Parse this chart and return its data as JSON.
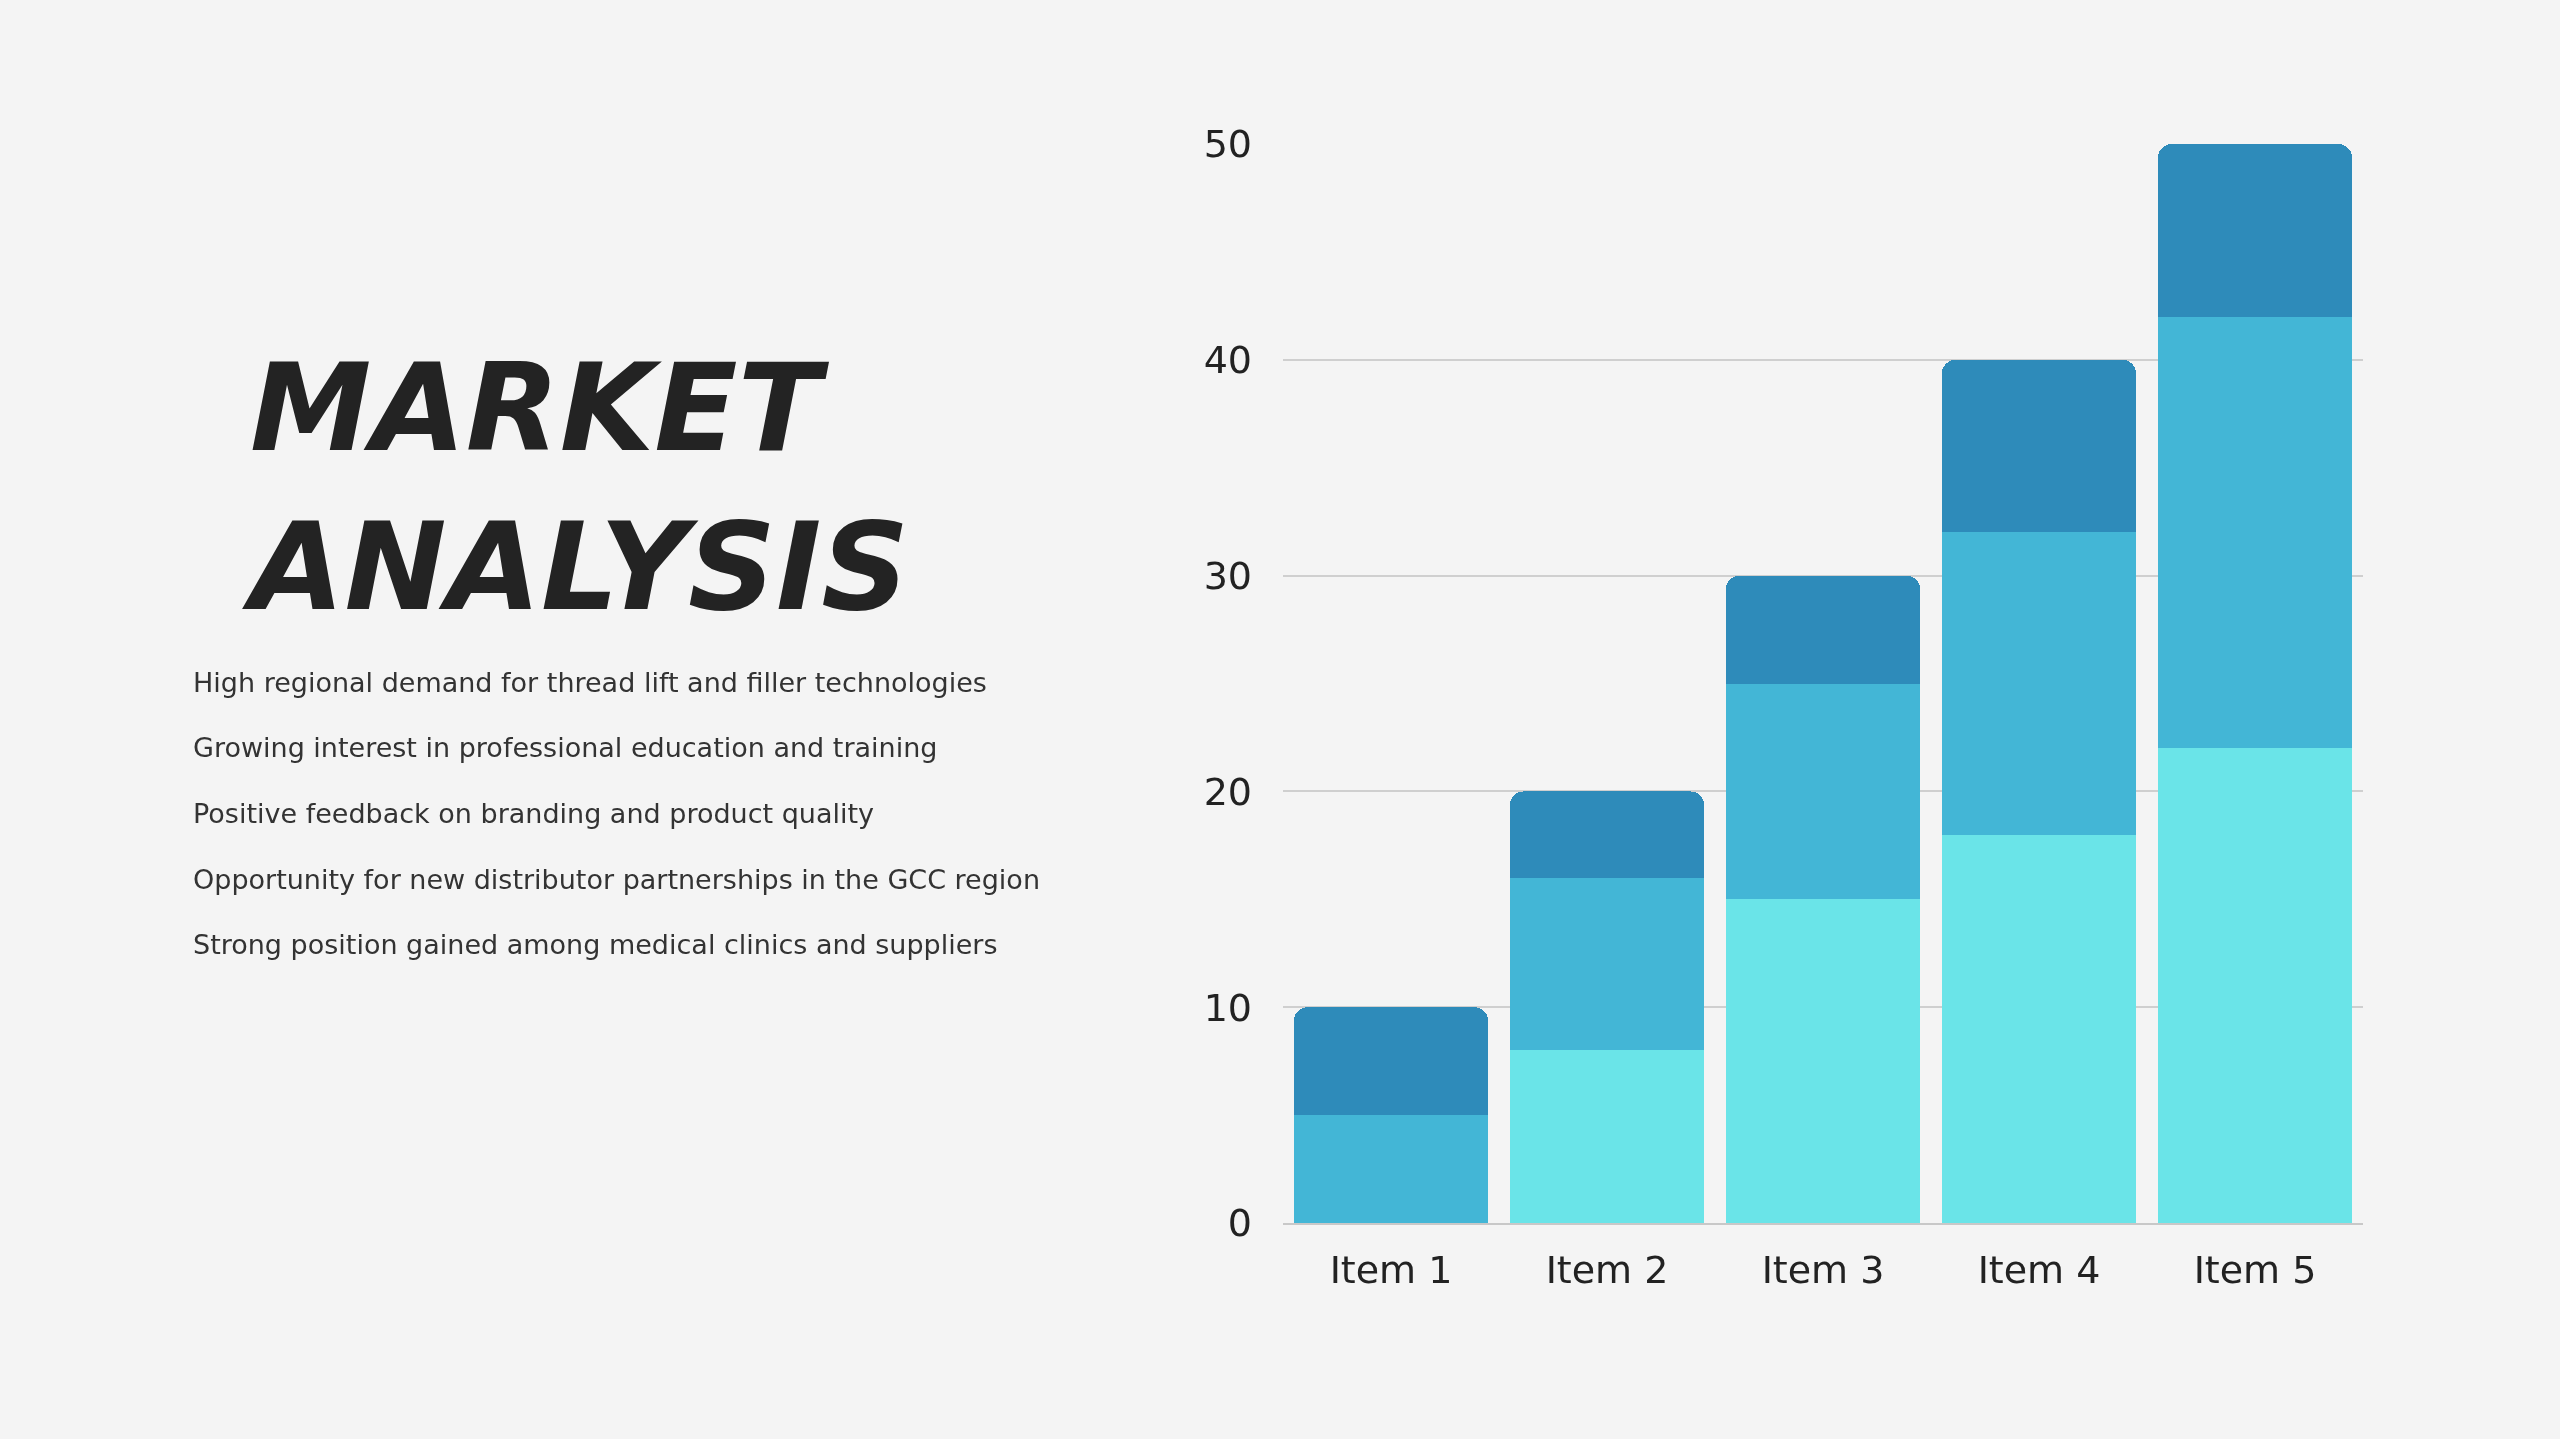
{
  "chart_data": {
    "type": "bar",
    "title": "MARKET ANALYSIS",
    "annotations": [
      "High regional demand for thread lift and filler technologies",
      "Growing interest in professional education and training",
      "Positive feedback on branding and product quality",
      "Opportunity for new distributor partnerships in the GCC region",
      "Strong position gained among medical clinics and suppliers"
    ],
    "categories": [
      "Item 1",
      "Item 2",
      "Item 3",
      "Item 4",
      "Item 5"
    ],
    "series": [
      {
        "color": "#6ae4e8",
        "values": [
          0,
          8,
          15,
          18,
          22
        ]
      },
      {
        "color": "#43b6d6",
        "values": [
          5,
          8,
          10,
          14,
          20
        ]
      },
      {
        "color": "#2e8bba",
        "values": [
          5,
          4,
          5,
          8,
          8
        ]
      }
    ],
    "stacked": true,
    "ylim": [
      0,
      50
    ],
    "yticks": [
      0,
      10,
      20,
      30,
      40,
      50
    ],
    "grid": "y"
  }
}
